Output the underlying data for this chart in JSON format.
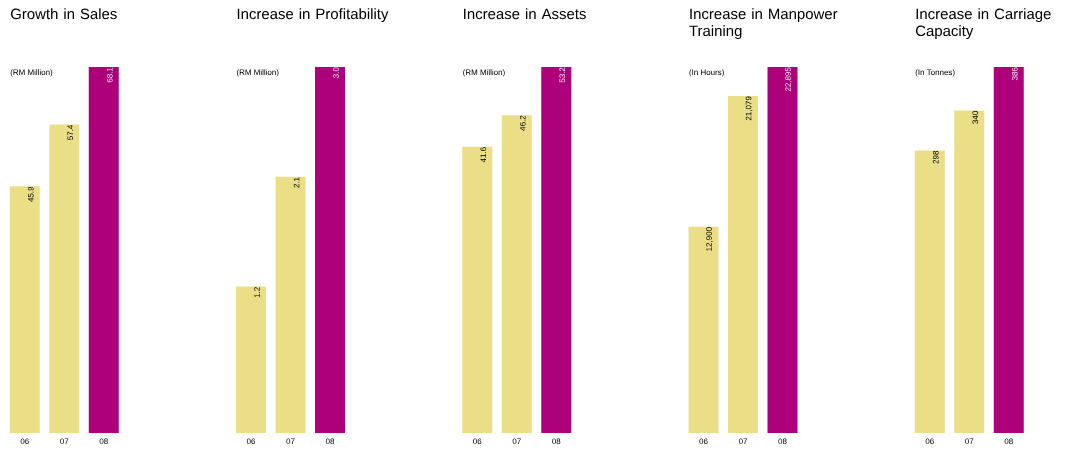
{
  "chart_data": [
    {
      "type": "bar",
      "title": "Growth in Sales",
      "subtitle": "(RM Million)",
      "categories": [
        "06",
        "07",
        "08"
      ],
      "values": [
        45.9,
        57.4,
        68.1
      ],
      "value_labels": [
        "45.9",
        "57.4",
        "68.1"
      ],
      "colors": [
        "#eadf87",
        "#eadf87",
        "#ad007b"
      ]
    },
    {
      "type": "bar",
      "title": "Increase in Profitability",
      "subtitle": "(RM Million)",
      "categories": [
        "06",
        "07",
        "08"
      ],
      "values": [
        1.2,
        2.1,
        3.0
      ],
      "value_labels": [
        "1.2",
        "2.1",
        "3.0"
      ],
      "colors": [
        "#eadf87",
        "#eadf87",
        "#ad007b"
      ]
    },
    {
      "type": "bar",
      "title": "Increase in Assets",
      "subtitle": "(RM Million)",
      "categories": [
        "06",
        "07",
        "08"
      ],
      "values": [
        41.6,
        46.2,
        53.2
      ],
      "value_labels": [
        "41.6",
        "46.2",
        "53.2"
      ],
      "colors": [
        "#eadf87",
        "#eadf87",
        "#ad007b"
      ]
    },
    {
      "type": "bar",
      "title": "Increase in Manpower Training",
      "subtitle": "(In Hours)",
      "categories": [
        "06",
        "07",
        "08"
      ],
      "values": [
        12900,
        21079,
        22895
      ],
      "value_labels": [
        "12,900",
        "21,079",
        "22,895"
      ],
      "colors": [
        "#eadf87",
        "#eadf87",
        "#ad007b"
      ]
    },
    {
      "type": "bar",
      "title": "Increase in Carriage Capacity",
      "subtitle": "(In Tonnes)",
      "categories": [
        "06",
        "07",
        "08"
      ],
      "values": [
        298,
        340,
        386
      ],
      "value_labels": [
        "298",
        "340",
        "386"
      ],
      "colors": [
        "#eadf87",
        "#eadf87",
        "#ad007b"
      ]
    }
  ]
}
